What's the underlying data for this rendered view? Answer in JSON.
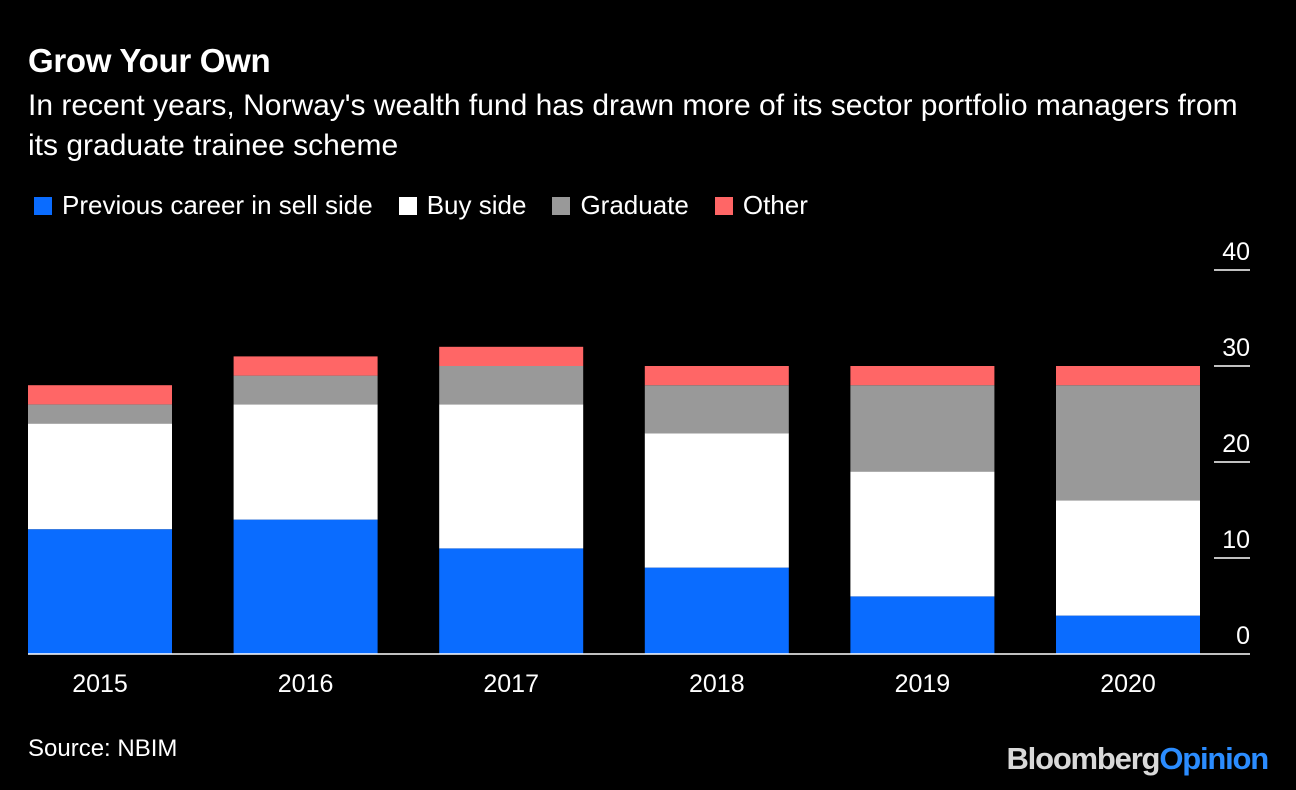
{
  "title": "Grow Your Own",
  "subtitle": "In recent years, Norway's wealth fund has drawn more of its sector portfolio managers from its graduate trainee scheme",
  "source": "Source: NBIM",
  "logo": {
    "part1": "Bloomberg",
    "part2": "Opinion"
  },
  "colors": {
    "background": "#000000",
    "sell_side": "#0a6cff",
    "buy_side": "#ffffff",
    "graduate": "#999999",
    "other": "#ff6666",
    "text": "#ffffff",
    "gridline": "#ffffff"
  },
  "legend": [
    {
      "label": "Previous career in sell side",
      "color": "#0a6cff"
    },
    {
      "label": "Buy side",
      "color": "#ffffff"
    },
    {
      "label": "Graduate",
      "color": "#999999"
    },
    {
      "label": "Other",
      "color": "#ff6666"
    }
  ],
  "chart_data": {
    "type": "bar",
    "stacked": true,
    "categories": [
      "2015",
      "2016",
      "2017",
      "2018",
      "2019",
      "2020"
    ],
    "series": [
      {
        "name": "Previous career in sell side",
        "color": "#0a6cff",
        "values": [
          13,
          14,
          11,
          9,
          6,
          4
        ]
      },
      {
        "name": "Buy side",
        "color": "#ffffff",
        "values": [
          11,
          12,
          15,
          14,
          13,
          12
        ]
      },
      {
        "name": "Graduate",
        "color": "#999999",
        "values": [
          2,
          3,
          4,
          5,
          9,
          12
        ]
      },
      {
        "name": "Other",
        "color": "#ff6666",
        "values": [
          2,
          2,
          2,
          2,
          2,
          2
        ]
      }
    ],
    "ylim": [
      0,
      40
    ],
    "yticks": [
      0,
      10,
      20,
      30,
      40
    ],
    "y_axis_position": "right",
    "grid": false
  }
}
